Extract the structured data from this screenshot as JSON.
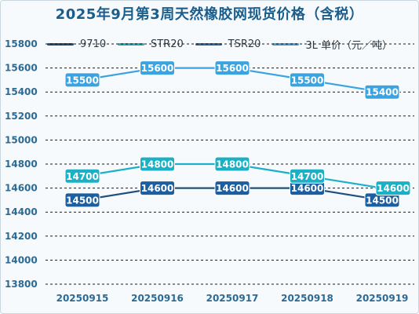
{
  "title": "2025年9月第3周天然橡胶网现货价格（含税）",
  "chart_data": {
    "type": "line",
    "title": "2025年9月第3周天然橡胶网现货价格（含税）",
    "categories": [
      "20250915",
      "20250916",
      "20250917",
      "20250918",
      "20250919"
    ],
    "ylim": [
      13800,
      15800
    ],
    "yticks": [
      13800,
      14000,
      14200,
      14400,
      14600,
      14800,
      15000,
      15200,
      15400,
      15600,
      15800
    ],
    "grid": true,
    "legend_position": "top",
    "series": [
      {
        "name": "9710",
        "color": "#1f4f7a",
        "values": [
          14500,
          14600,
          14600,
          14600,
          14500
        ]
      },
      {
        "name": "STR20",
        "color": "#1cb0c6",
        "values": [
          14700,
          14800,
          14800,
          14700,
          14600
        ]
      },
      {
        "name": "TSR20",
        "color": "#2f6aa8",
        "values": [
          null,
          null,
          null,
          null,
          null
        ]
      },
      {
        "name": "3L 单价（元／吨）",
        "color": "#3aa3e0",
        "values": [
          15500,
          15600,
          15600,
          15500,
          15400
        ]
      }
    ]
  }
}
